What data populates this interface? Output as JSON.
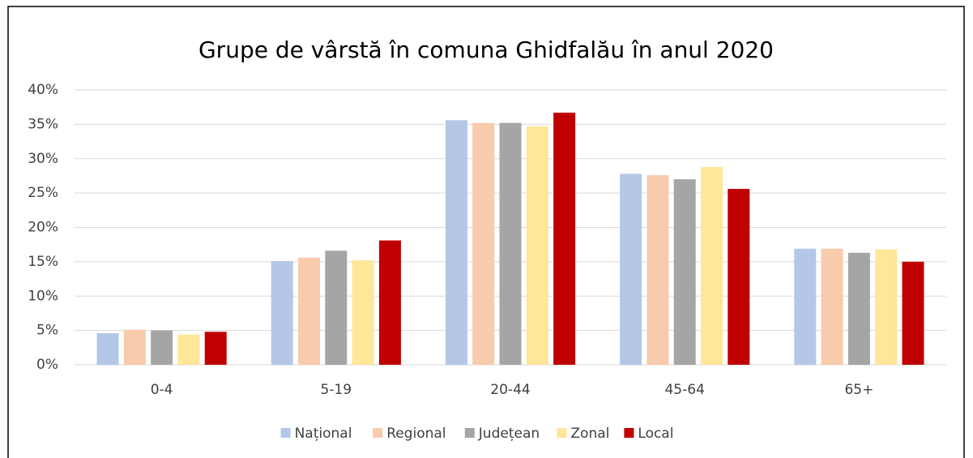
{
  "chart_data": {
    "type": "bar",
    "title": "Grupe de vârstă în comuna Ghidfalău în anul 2020",
    "categories": [
      "0-4",
      "5-19",
      "20-44",
      "45-64",
      "65+"
    ],
    "series": [
      {
        "name": "Național",
        "color": "#b4c7e7",
        "values": [
          4.6,
          15.1,
          35.6,
          27.8,
          16.9
        ]
      },
      {
        "name": "Regional",
        "color": "#f8cbad",
        "values": [
          5.1,
          15.6,
          35.2,
          27.6,
          16.9
        ]
      },
      {
        "name": "Județean",
        "color": "#a5a5a5",
        "values": [
          5.0,
          16.6,
          35.2,
          27.0,
          16.3
        ]
      },
      {
        "name": "Zonal",
        "color": "#ffe699",
        "values": [
          4.4,
          15.2,
          34.7,
          28.8,
          16.8
        ]
      },
      {
        "name": "Local",
        "color": "#c00000",
        "values": [
          4.8,
          18.1,
          36.7,
          25.6,
          15.0
        ]
      }
    ],
    "ylim": [
      0,
      40
    ],
    "yticks": [
      {
        "value": 0,
        "label": "0%"
      },
      {
        "value": 5,
        "label": "5%"
      },
      {
        "value": 10,
        "label": "10%"
      },
      {
        "value": 15,
        "label": "15%"
      },
      {
        "value": 20,
        "label": "20%"
      },
      {
        "value": 25,
        "label": "25%"
      },
      {
        "value": 30,
        "label": "30%"
      },
      {
        "value": 35,
        "label": "35%"
      },
      {
        "value": 40,
        "label": "40%"
      }
    ],
    "grid": true,
    "legend": "bottom"
  }
}
